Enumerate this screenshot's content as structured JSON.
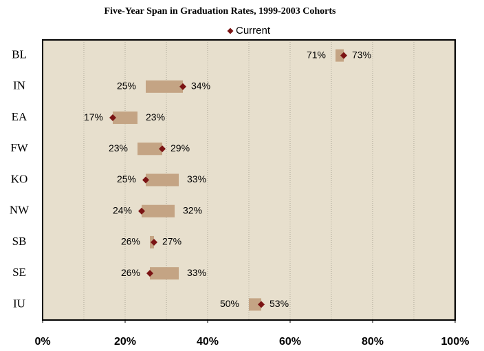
{
  "chart_data": {
    "type": "range-bar",
    "title": "Five-Year Span in Graduation Rates, 1999-2003 Cohorts",
    "categories": [
      "BL",
      "IN",
      "EA",
      "FW",
      "KO",
      "NW",
      "SB",
      "SE",
      "IU"
    ],
    "ranges": {
      "color": "#c4a484",
      "low": [
        71,
        25,
        17,
        23,
        25,
        24,
        26,
        26,
        50
      ],
      "low_labels": [
        "71%",
        "25%",
        "17%",
        "23%",
        "25%",
        "24%",
        "26%",
        "26%",
        "50%"
      ],
      "high": [
        73,
        34,
        23,
        29,
        33,
        32,
        27,
        33,
        53
      ],
      "high_labels": [
        "73%",
        "34%",
        "23%",
        "29%",
        "33%",
        "32%",
        "27%",
        "33%",
        "53%"
      ]
    },
    "series": [
      {
        "name": "Current",
        "color": "#7b1414",
        "values": [
          73,
          34,
          17,
          29,
          25,
          24,
          27,
          26,
          53
        ]
      }
    ],
    "xlim": [
      0,
      100
    ],
    "xticks": [
      {
        "value": 0,
        "label": "0%"
      },
      {
        "value": 20,
        "label": "20%"
      },
      {
        "value": 40,
        "label": "40%"
      },
      {
        "value": 60,
        "label": "60%"
      },
      {
        "value": 80,
        "label": "80%"
      },
      {
        "value": 100,
        "label": "100%"
      }
    ],
    "minor_xticks": [
      10,
      20,
      30,
      40,
      50,
      60,
      70,
      80,
      90
    ],
    "grid": true,
    "legend": "top"
  }
}
